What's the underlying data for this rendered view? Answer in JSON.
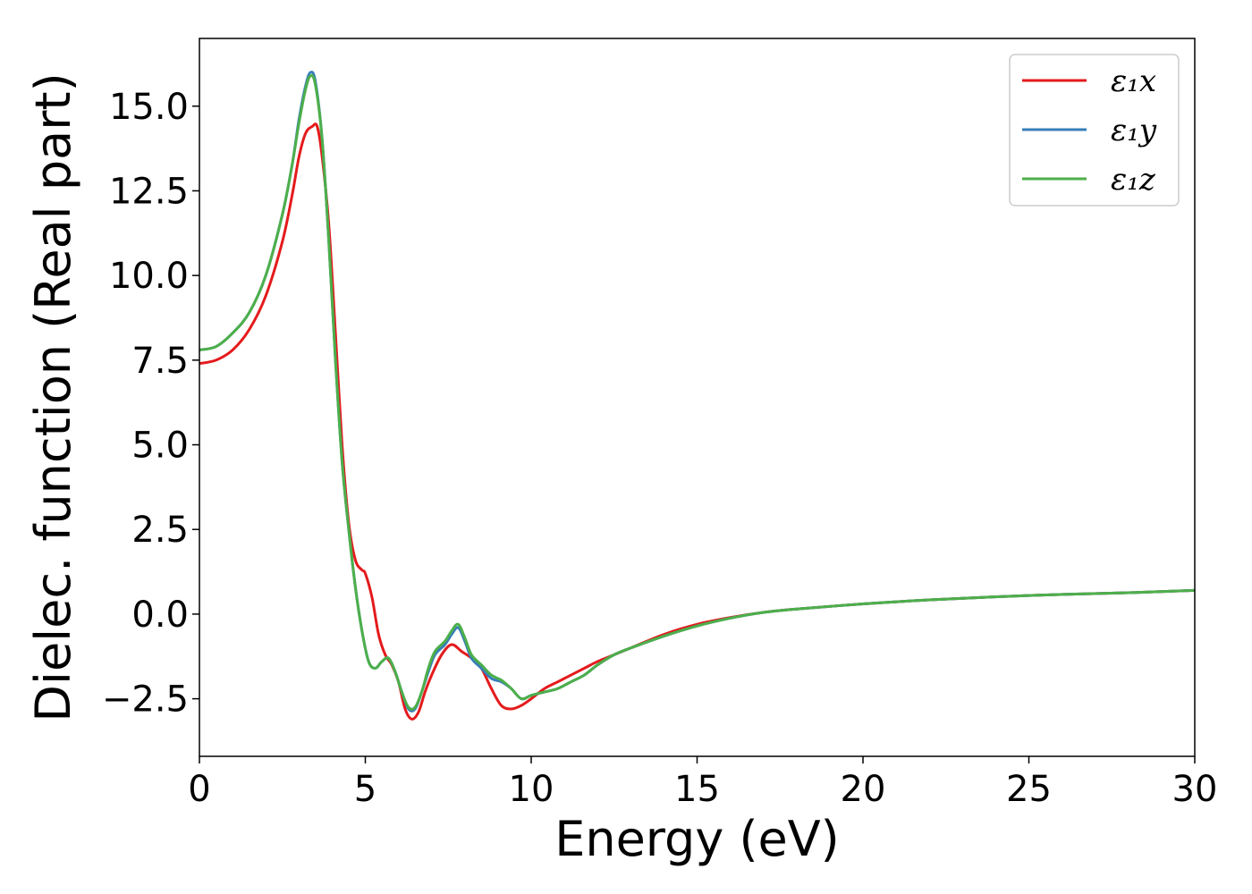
{
  "chart_data": {
    "type": "line",
    "title": "",
    "xlabel": "Energy (eV)",
    "ylabel": "Dielec. function (Real part)",
    "xlim": [
      0,
      30
    ],
    "ylim": [
      -4.2,
      17
    ],
    "x_ticks": [
      0,
      5,
      10,
      15,
      20,
      25,
      30
    ],
    "x_tick_labels": [
      "0",
      "5",
      "10",
      "15",
      "20",
      "25",
      "30"
    ],
    "y_ticks": [
      -2.5,
      0.0,
      2.5,
      5.0,
      7.5,
      10.0,
      12.5,
      15.0
    ],
    "y_tick_labels": [
      "−2.5",
      "0.0",
      "2.5",
      "5.0",
      "7.5",
      "10.0",
      "12.5",
      "15.0"
    ],
    "grid": false,
    "legend_position": "top-right",
    "series": [
      {
        "name": "ε₁x",
        "color": "#e41a1c",
        "x": [
          0,
          0.5,
          1.0,
          1.5,
          2.0,
          2.5,
          2.8,
          3.0,
          3.2,
          3.4,
          3.55,
          3.7,
          3.9,
          4.1,
          4.3,
          4.5,
          4.7,
          4.9,
          5.0,
          5.2,
          5.4,
          5.6,
          5.8,
          6.0,
          6.2,
          6.4,
          6.6,
          6.8,
          7.0,
          7.3,
          7.6,
          7.9,
          8.2,
          8.5,
          8.8,
          9.1,
          9.4,
          9.7,
          10.0,
          10.4,
          10.8,
          11.2,
          11.6,
          12.0,
          12.5,
          13.0,
          14.0,
          15.0,
          16.0,
          17.0,
          18.0,
          20.0,
          22.0,
          25.0,
          28.0,
          30.0
        ],
        "y": [
          7.4,
          7.5,
          7.8,
          8.4,
          9.4,
          11.0,
          12.4,
          13.5,
          14.2,
          14.4,
          14.4,
          13.5,
          11.5,
          8.3,
          5.0,
          2.7,
          1.6,
          1.3,
          1.2,
          0.5,
          -0.6,
          -1.2,
          -1.5,
          -2.0,
          -2.8,
          -3.1,
          -2.9,
          -2.3,
          -1.8,
          -1.2,
          -0.9,
          -1.1,
          -1.3,
          -1.6,
          -2.2,
          -2.7,
          -2.8,
          -2.7,
          -2.5,
          -2.2,
          -2.0,
          -1.8,
          -1.6,
          -1.4,
          -1.2,
          -1.0,
          -0.6,
          -0.3,
          -0.1,
          0.05,
          0.15,
          0.3,
          0.42,
          0.55,
          0.63,
          0.7
        ]
      },
      {
        "name": "ε₁y",
        "color": "#377eb8",
        "x": [
          0,
          0.5,
          1.0,
          1.5,
          2.0,
          2.5,
          2.8,
          3.0,
          3.2,
          3.35,
          3.5,
          3.7,
          3.9,
          4.1,
          4.3,
          4.5,
          4.7,
          4.9,
          5.1,
          5.3,
          5.5,
          5.7,
          5.9,
          6.1,
          6.3,
          6.5,
          6.7,
          6.9,
          7.1,
          7.4,
          7.6,
          7.8,
          8.0,
          8.2,
          8.5,
          8.8,
          9.1,
          9.4,
          9.7,
          10.0,
          10.4,
          10.8,
          11.2,
          11.6,
          12.0,
          12.5,
          13.0,
          14.0,
          15.0,
          16.0,
          17.0,
          18.0,
          20.0,
          22.0,
          25.0,
          28.0,
          30.0
        ],
        "y": [
          7.8,
          7.9,
          8.3,
          8.9,
          10.0,
          11.8,
          13.3,
          14.6,
          15.6,
          16.0,
          15.7,
          14.0,
          11.0,
          7.5,
          4.5,
          2.5,
          0.8,
          -0.5,
          -1.4,
          -1.6,
          -1.4,
          -1.3,
          -1.7,
          -2.3,
          -2.8,
          -2.8,
          -2.3,
          -1.7,
          -1.2,
          -0.9,
          -0.6,
          -0.4,
          -0.8,
          -1.3,
          -1.6,
          -1.9,
          -2.0,
          -2.2,
          -2.5,
          -2.4,
          -2.3,
          -2.2,
          -2.0,
          -1.8,
          -1.5,
          -1.2,
          -1.0,
          -0.65,
          -0.35,
          -0.12,
          0.05,
          0.15,
          0.3,
          0.42,
          0.55,
          0.63,
          0.7
        ]
      },
      {
        "name": "ε₁z",
        "color": "#4daf4a",
        "x": [
          0,
          0.5,
          1.0,
          1.5,
          2.0,
          2.5,
          2.8,
          3.0,
          3.2,
          3.35,
          3.5,
          3.7,
          3.9,
          4.1,
          4.3,
          4.5,
          4.7,
          4.9,
          5.1,
          5.3,
          5.5,
          5.7,
          5.9,
          6.1,
          6.3,
          6.5,
          6.7,
          6.9,
          7.1,
          7.4,
          7.6,
          7.8,
          8.0,
          8.2,
          8.5,
          8.8,
          9.1,
          9.4,
          9.7,
          10.0,
          10.4,
          10.8,
          11.2,
          11.6,
          12.0,
          12.5,
          13.0,
          14.0,
          15.0,
          16.0,
          17.0,
          18.0,
          20.0,
          22.0,
          25.0,
          28.0,
          30.0
        ],
        "y": [
          7.8,
          7.9,
          8.3,
          8.9,
          10.0,
          11.8,
          13.3,
          14.5,
          15.5,
          15.9,
          15.6,
          14.0,
          11.0,
          7.5,
          4.5,
          2.5,
          0.8,
          -0.5,
          -1.4,
          -1.6,
          -1.4,
          -1.3,
          -1.7,
          -2.3,
          -2.75,
          -2.75,
          -2.3,
          -1.6,
          -1.1,
          -0.8,
          -0.5,
          -0.3,
          -0.7,
          -1.2,
          -1.5,
          -1.8,
          -1.95,
          -2.2,
          -2.5,
          -2.4,
          -2.3,
          -2.2,
          -2.0,
          -1.8,
          -1.5,
          -1.2,
          -1.0,
          -0.65,
          -0.35,
          -0.12,
          0.05,
          0.15,
          0.3,
          0.42,
          0.55,
          0.63,
          0.7
        ]
      }
    ]
  }
}
